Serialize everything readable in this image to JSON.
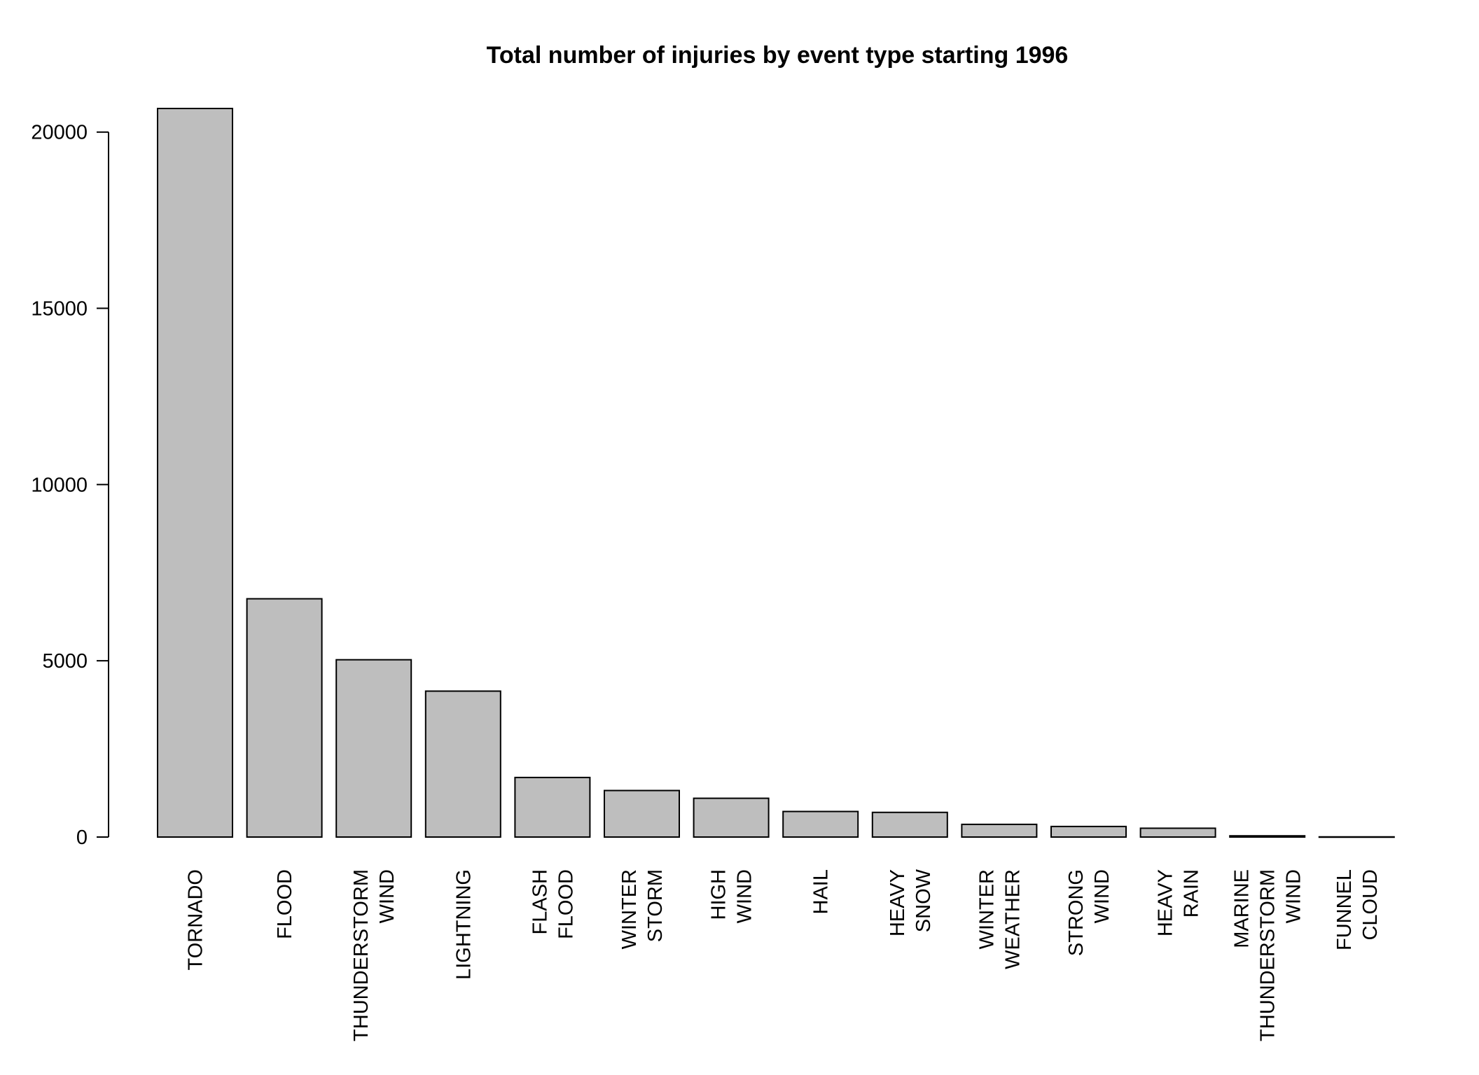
{
  "chart_data": {
    "type": "bar",
    "title": "Total number of injuries by event type starting 1996",
    "xlabel": "",
    "ylabel": "",
    "categories": [
      [
        "TORNADO"
      ],
      [
        "FLOOD"
      ],
      [
        "THUNDERSTORM",
        "WIND"
      ],
      [
        "LIGHTNING"
      ],
      [
        "FLASH",
        "FLOOD"
      ],
      [
        "WINTER",
        "STORM"
      ],
      [
        "HIGH",
        "WIND"
      ],
      [
        "HAIL"
      ],
      [
        "HEAVY",
        "SNOW"
      ],
      [
        "WINTER",
        "WEATHER"
      ],
      [
        "STRONG",
        "WIND"
      ],
      [
        "HEAVY",
        "RAIN"
      ],
      [
        "MARINE",
        "THUNDERSTORM",
        "WIND"
      ],
      [
        "FUNNEL",
        "CLOUD"
      ]
    ],
    "values": [
      20670,
      6760,
      5030,
      4140,
      1690,
      1320,
      1100,
      725,
      700,
      360,
      300,
      250,
      35,
      5
    ],
    "ylim": [
      0,
      20670
    ],
    "yticks": [
      0,
      5000,
      10000,
      15000,
      20000
    ],
    "grid": false,
    "colors": {
      "bar_fill": "#bebebe",
      "bar_stroke": "#000000"
    }
  }
}
